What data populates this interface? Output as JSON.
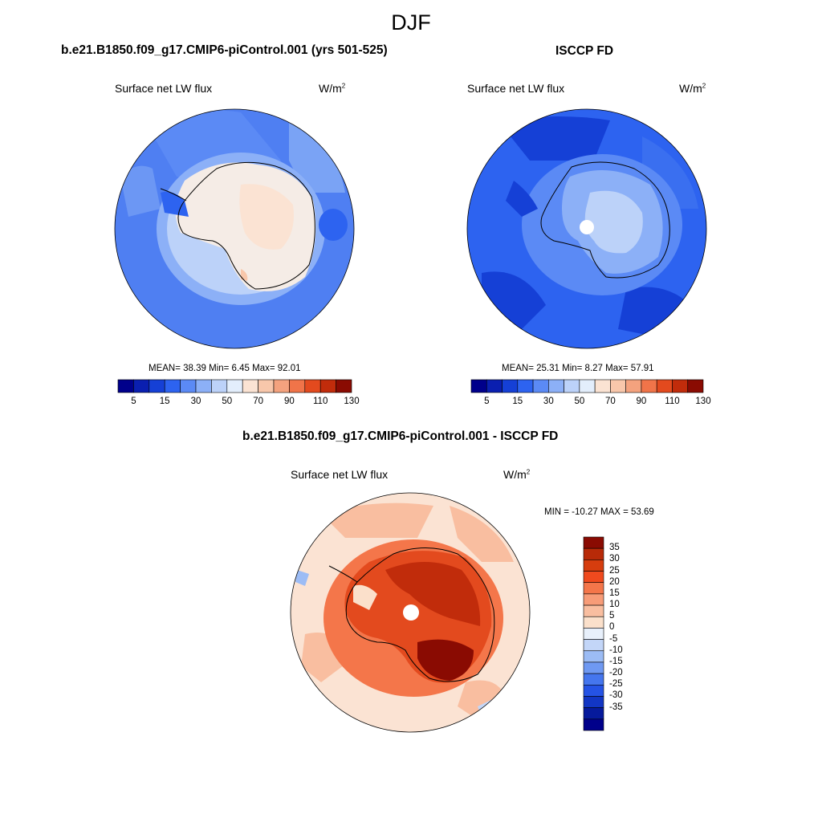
{
  "title": "DJF",
  "panels": {
    "model": {
      "title": "b.e21.B1850.f09_g17.CMIP6-piControl.001 (yrs 501-525)",
      "left_label": "Surface net LW flux",
      "units": "W/m",
      "units_sup": "2",
      "stats": "MEAN=  38.39  Min=   6.45  Max=  92.01"
    },
    "obs": {
      "title": "ISCCP FD",
      "left_label": "Surface net LW flux",
      "units": "W/m",
      "units_sup": "2",
      "stats": "MEAN=  25.31  Min=   8.27  Max=  57.91"
    },
    "diff": {
      "title": "b.e21.B1850.f09_g17.CMIP6-piControl.001 - ISCCP FD",
      "left_label": "Surface net LW flux",
      "units": "W/m",
      "units_sup": "2",
      "stats": "MIN = -10.27 MAX =  53.69"
    }
  },
  "colorbar_abs": {
    "colors": [
      "#00008b",
      "#0a1fb0",
      "#1540d6",
      "#2d63f0",
      "#5b8af5",
      "#8cb0f7",
      "#bcd2f9",
      "#e3eefc",
      "#fbe3d3",
      "#f8c7ab",
      "#f4a27e",
      "#f07449",
      "#e34a1e",
      "#c12c0b",
      "#8a0b02"
    ],
    "tick_labels": [
      "5",
      "15",
      "30",
      "50",
      "70",
      "90",
      "110",
      "130"
    ]
  },
  "colorbar_diff": {
    "colors": [
      "#8a0b02",
      "#b82a08",
      "#d63d0e",
      "#f04a1e",
      "#f4764a",
      "#f79c78",
      "#f9bea0",
      "#fbe0cb",
      "#e8f0fb",
      "#c3d6f8",
      "#9cbcf5",
      "#6f99f2",
      "#4576ee",
      "#2553e5",
      "#1236c4",
      "#061a9c",
      "#00008b"
    ],
    "tick_labels": [
      "35",
      "30",
      "25",
      "20",
      "15",
      "10",
      "5",
      "0",
      "-5",
      "-10",
      "-15",
      "-20",
      "-25",
      "-30",
      "-35"
    ]
  }
}
